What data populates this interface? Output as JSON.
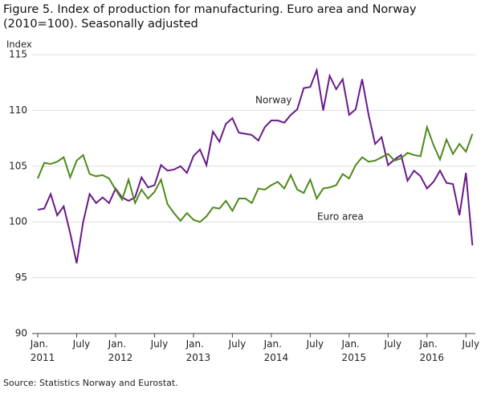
{
  "chart_data": {
    "type": "line",
    "title": "Figure 5. Index of production for manufacturing. Euro area and Norway (2010=100). Seasonally adjusted",
    "y_label": "Index",
    "source": "Source: Statistics Norway and Eurostat.",
    "categories": [
      "Jan.\n2011",
      null,
      null,
      null,
      null,
      null,
      "July",
      null,
      null,
      null,
      null,
      null,
      "Jan.\n2012",
      null,
      null,
      null,
      null,
      null,
      "July",
      null,
      null,
      null,
      null,
      null,
      "Jan.\n2013",
      null,
      null,
      null,
      null,
      null,
      "July",
      null,
      null,
      null,
      null,
      null,
      "Jan.\n2014",
      null,
      null,
      null,
      null,
      null,
      "July",
      null,
      null,
      null,
      null,
      null,
      "Jan.\n2015",
      null,
      null,
      null,
      null,
      null,
      "July",
      null,
      null,
      null,
      null,
      null,
      "Jan.\n2016",
      null,
      null,
      null,
      null,
      null,
      "July",
      null
    ],
    "series": [
      {
        "name": "Norway",
        "color": "#6a1a8a",
        "values": [
          101.1,
          101.2,
          102.5,
          100.6,
          101.4,
          99.0,
          96.3,
          100.0,
          102.5,
          101.7,
          102.2,
          101.7,
          103.0,
          102.2,
          101.9,
          102.2,
          104.0,
          103.1,
          103.3,
          105.1,
          104.6,
          104.7,
          105.0,
          104.4,
          105.9,
          106.5,
          105.1,
          108.1,
          107.2,
          108.8,
          109.3,
          108.0,
          107.9,
          107.8,
          107.3,
          108.5,
          109.1,
          109.1,
          108.9,
          109.6,
          110.1,
          112.0,
          112.1,
          113.6,
          110.0,
          113.1,
          111.9,
          112.8,
          109.6,
          110.1,
          112.8,
          109.6,
          107.0,
          107.6,
          105.1,
          105.6,
          106.0,
          103.7,
          104.6,
          104.1,
          103.0,
          103.6,
          104.6,
          103.5,
          103.4,
          100.6,
          104.4,
          97.9
        ]
      },
      {
        "name": "Euro area",
        "color": "#4e8a1a",
        "values": [
          103.9,
          105.3,
          105.2,
          105.4,
          105.8,
          104.0,
          105.5,
          106.0,
          104.3,
          104.1,
          104.2,
          103.9,
          102.9,
          102.0,
          103.8,
          101.7,
          102.9,
          102.1,
          102.7,
          103.8,
          101.6,
          100.8,
          100.1,
          100.8,
          100.2,
          100.0,
          100.5,
          101.3,
          101.2,
          101.9,
          101.0,
          102.1,
          102.1,
          101.7,
          103.0,
          102.9,
          103.3,
          103.6,
          103.0,
          104.2,
          102.9,
          102.6,
          103.8,
          102.1,
          103.0,
          103.1,
          103.3,
          104.3,
          103.9,
          105.1,
          105.8,
          105.4,
          105.5,
          105.8,
          106.1,
          105.5,
          105.7,
          106.2,
          106.0,
          105.9,
          108.5,
          106.9,
          105.6,
          107.4,
          106.1,
          107.0,
          106.3,
          107.9
        ]
      }
    ],
    "ylim": [
      90,
      115
    ],
    "yticks": [
      90,
      95,
      100,
      105,
      110,
      115
    ],
    "grid": true
  }
}
